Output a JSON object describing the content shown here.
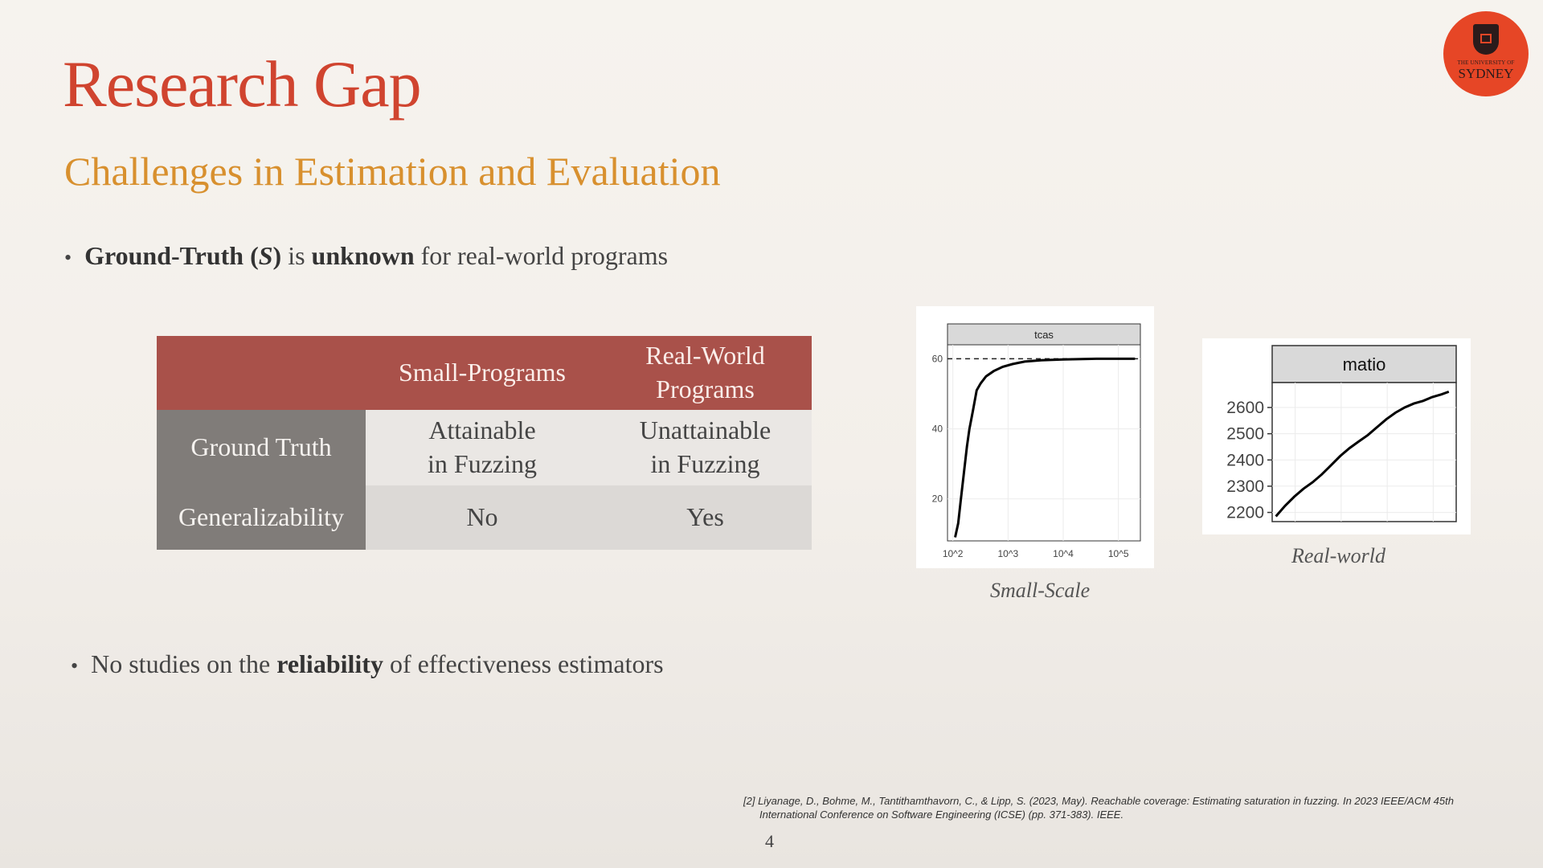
{
  "slide": {
    "title": "Research Gap",
    "subtitle": "Challenges in Estimation and Evaluation",
    "bullet1": {
      "part1": "Ground-Truth (",
      "symbol": "S",
      "part2": ")",
      "part3": " is ",
      "part4": "unknown",
      "part5": " for real-world programs"
    },
    "bullet2": {
      "part1": "No studies on the ",
      "part2": "reliability",
      "part3": " of effectiveness estimators"
    },
    "page_number": "4"
  },
  "table": {
    "headers": [
      "",
      "Small-Programs",
      "Real-World Programs"
    ],
    "header_wrap": [
      "Real-World",
      "Programs"
    ],
    "rows": [
      {
        "label": "Ground Truth",
        "cells": [
          [
            "Attainable",
            "in Fuzzing"
          ],
          [
            "Unattainable",
            "in Fuzzing"
          ]
        ]
      },
      {
        "label": "Generalizability",
        "cells": [
          [
            "No"
          ],
          [
            "Yes"
          ]
        ]
      }
    ]
  },
  "logo": {
    "small_text": "THE UNIVERSITY OF",
    "big_text": "SYDNEY"
  },
  "reference": {
    "line1": "[2] Liyanage, D., Bohme, M., Tantithamthavorn, C., & Lipp, S. (2023, May). Reachable coverage: Estimating saturation in fuzzing. In 2023 IEEE/ACM 45th",
    "line2": "International Conference on Software Engineering (ICSE) (pp. 371-383). IEEE."
  },
  "captions": {
    "small": "Small-Scale",
    "real": "Real-world"
  },
  "chart_data": [
    {
      "type": "line",
      "panel_title": "tcas",
      "x_scale": "log",
      "xticks": [
        100,
        1000,
        10000,
        100000
      ],
      "xtick_labels": [
        "10^2",
        "10^3",
        "10^4",
        "10^5"
      ],
      "yticks": [
        20,
        40,
        60
      ],
      "ylim": [
        8,
        64
      ],
      "xlim": [
        80,
        250000
      ],
      "reference_line_y": 60,
      "series": [
        {
          "points": [
            [
              110,
              9
            ],
            [
              125,
              13
            ],
            [
              140,
              20
            ],
            [
              160,
              28
            ],
            [
              180,
              35
            ],
            [
              200,
              40
            ],
            [
              230,
              45
            ],
            [
              270,
              51
            ],
            [
              320,
              53
            ],
            [
              400,
              55
            ],
            [
              550,
              56.5
            ],
            [
              800,
              57.7
            ],
            [
              1200,
              58.5
            ],
            [
              2000,
              59.2
            ],
            [
              4000,
              59.6
            ],
            [
              10000,
              59.8
            ],
            [
              40000,
              60
            ],
            [
              200000,
              60
            ]
          ]
        }
      ],
      "grid": true
    },
    {
      "type": "line",
      "panel_title": "matio",
      "yticks": [
        2200,
        2300,
        2400,
        2500,
        2600
      ],
      "ylim": [
        2165,
        2695
      ],
      "xlim": [
        0,
        100
      ],
      "series": [
        {
          "points": [
            [
              2,
              2185
            ],
            [
              7,
              2225
            ],
            [
              12,
              2260
            ],
            [
              17,
              2290
            ],
            [
              22,
              2315
            ],
            [
              27,
              2345
            ],
            [
              32,
              2380
            ],
            [
              37,
              2415
            ],
            [
              42,
              2445
            ],
            [
              47,
              2470
            ],
            [
              52,
              2495
            ],
            [
              57,
              2525
            ],
            [
              62,
              2555
            ],
            [
              67,
              2580
            ],
            [
              72,
              2600
            ],
            [
              77,
              2615
            ],
            [
              82,
              2625
            ],
            [
              87,
              2640
            ],
            [
              92,
              2650
            ],
            [
              96,
              2660
            ]
          ]
        }
      ],
      "grid": true
    }
  ]
}
